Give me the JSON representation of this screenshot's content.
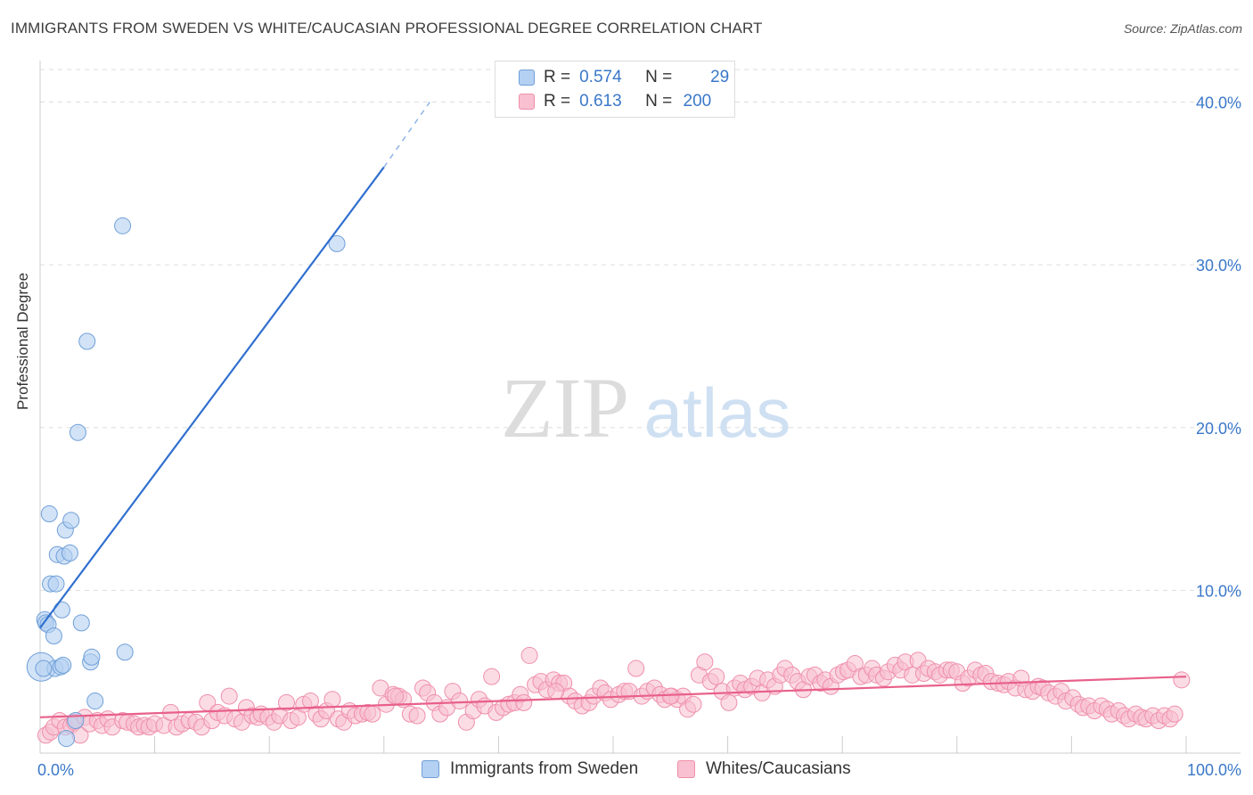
{
  "header": {
    "title": "IMMIGRANTS FROM SWEDEN VS WHITE/CAUCASIAN PROFESSIONAL DEGREE CORRELATION CHART",
    "source": "Source: ZipAtlas.com"
  },
  "watermark": {
    "zip": "ZIP",
    "atlas": "atlas"
  },
  "legend": {
    "series1": {
      "r_label": "R =",
      "r_value": "0.574",
      "n_label": "N =",
      "n_value": "29"
    },
    "series2": {
      "r_label": "R =",
      "r_value": "0.613",
      "n_label": "N =",
      "n_value": "200"
    }
  },
  "colors": {
    "blue_fill": "#b4d0f2",
    "blue_stroke": "#6f9fd8",
    "blue_line": "#2f6fcf",
    "pink_fill": "#f8c0d0",
    "pink_stroke": "#ef8fab",
    "pink_line": "#e8608a",
    "axis_text": "#3a78c9",
    "grid": "#dddddd"
  },
  "chart_data": {
    "type": "scatter",
    "title": "IMMIGRANTS FROM SWEDEN VS WHITE/CAUCASIAN PROFESSIONAL DEGREE CORRELATION CHART",
    "xlabel": "",
    "ylabel": "Professional Degree",
    "xlim": [
      0,
      100
    ],
    "ylim": [
      0,
      42
    ],
    "x_tick_labels": [
      "0.0%",
      "100.0%"
    ],
    "y_ticks": [
      10,
      20,
      30,
      40
    ],
    "y_tick_labels": [
      "10.0%",
      "20.0%",
      "30.0%",
      "40.0%"
    ],
    "grid": true,
    "series": [
      {
        "name": "Immigrants from Sweden",
        "color": "#6f9fd8",
        "r": 0.574,
        "n": 29,
        "trend": {
          "x0": 0,
          "y0": 7.7,
          "x1": 30,
          "y1": 36,
          "dash_to_x": 34,
          "dash_to_y": 40
        },
        "points": [
          [
            0.1,
            5.3,
            16
          ],
          [
            0.4,
            8.2,
            9
          ],
          [
            0.5,
            8.0,
            9
          ],
          [
            0.7,
            7.9,
            9
          ],
          [
            0.8,
            14.7,
            9
          ],
          [
            0.9,
            10.4,
            9
          ],
          [
            1.2,
            7.2,
            9
          ],
          [
            1.3,
            5.2,
            9
          ],
          [
            1.5,
            12.2,
            9
          ],
          [
            1.4,
            10.4,
            9
          ],
          [
            1.8,
            5.3,
            9
          ],
          [
            1.9,
            8.8,
            9
          ],
          [
            2.0,
            5.4,
            9
          ],
          [
            2.1,
            12.1,
            9
          ],
          [
            2.2,
            13.7,
            9
          ],
          [
            2.3,
            0.9,
            9
          ],
          [
            2.6,
            12.3,
            9
          ],
          [
            2.7,
            14.3,
            9
          ],
          [
            3.1,
            2.0,
            9
          ],
          [
            3.3,
            19.7,
            9
          ],
          [
            3.6,
            8.0,
            9
          ],
          [
            4.1,
            25.3,
            9
          ],
          [
            4.4,
            5.6,
            9
          ],
          [
            4.5,
            5.9,
            9
          ],
          [
            4.8,
            3.2,
            9
          ],
          [
            7.4,
            6.2,
            9
          ],
          [
            7.2,
            32.4,
            9
          ],
          [
            25.9,
            31.3,
            9
          ],
          [
            0.3,
            5.2,
            9
          ]
        ]
      },
      {
        "name": "Whites/Caucasians",
        "color": "#ef8fab",
        "r": 0.613,
        "n": 200,
        "trend": {
          "x0": 0,
          "y0": 2.2,
          "x1": 100,
          "y1": 4.7
        },
        "points": [
          [
            0.5,
            1.1
          ],
          [
            0.9,
            1.3
          ],
          [
            1.2,
            1.6
          ],
          [
            1.7,
            2.0
          ],
          [
            2.2,
            1.6
          ],
          [
            2.7,
            1.7
          ],
          [
            3.0,
            1.9
          ],
          [
            3.5,
            1.1
          ],
          [
            3.9,
            2.2
          ],
          [
            4.3,
            1.8
          ],
          [
            5.0,
            2.0
          ],
          [
            5.4,
            1.7
          ],
          [
            5.9,
            2.1
          ],
          [
            6.3,
            1.6
          ],
          [
            7.2,
            2.0
          ],
          [
            7.6,
            1.9
          ],
          [
            8.2,
            1.8
          ],
          [
            8.6,
            1.6
          ],
          [
            9.1,
            1.7
          ],
          [
            9.5,
            1.6
          ],
          [
            10.0,
            1.8
          ],
          [
            10.8,
            1.7
          ],
          [
            11.4,
            2.5
          ],
          [
            11.9,
            1.6
          ],
          [
            12.4,
            1.8
          ],
          [
            13.0,
            2.0
          ],
          [
            13.6,
            1.9
          ],
          [
            14.1,
            1.6
          ],
          [
            14.6,
            3.1
          ],
          [
            15.0,
            2.0
          ],
          [
            15.5,
            2.5
          ],
          [
            16.1,
            2.3
          ],
          [
            16.5,
            3.5
          ],
          [
            17.0,
            2.1
          ],
          [
            17.6,
            1.9
          ],
          [
            18.0,
            2.8
          ],
          [
            18.5,
            2.3
          ],
          [
            19.0,
            2.2
          ],
          [
            19.3,
            2.4
          ],
          [
            19.9,
            2.2
          ],
          [
            20.4,
            1.9
          ],
          [
            20.9,
            2.3
          ],
          [
            21.5,
            3.1
          ],
          [
            21.9,
            2.0
          ],
          [
            22.5,
            2.2
          ],
          [
            23.0,
            3.0
          ],
          [
            23.6,
            3.2
          ],
          [
            24.1,
            2.4
          ],
          [
            24.5,
            2.1
          ],
          [
            25.0,
            2.6
          ],
          [
            25.5,
            3.3
          ],
          [
            26.0,
            2.1
          ],
          [
            26.5,
            1.9
          ],
          [
            27.0,
            2.6
          ],
          [
            27.5,
            2.3
          ],
          [
            28.1,
            2.4
          ],
          [
            28.6,
            2.5
          ],
          [
            29.0,
            2.4
          ],
          [
            29.7,
            4.0
          ],
          [
            30.2,
            3.0
          ],
          [
            30.8,
            3.6
          ],
          [
            31.3,
            3.5
          ],
          [
            31.7,
            3.3
          ],
          [
            32.3,
            2.4
          ],
          [
            32.9,
            2.3
          ],
          [
            33.4,
            4.0
          ],
          [
            33.8,
            3.7
          ],
          [
            34.4,
            3.1
          ],
          [
            34.9,
            2.4
          ],
          [
            35.5,
            2.8
          ],
          [
            36.0,
            3.8
          ],
          [
            36.6,
            3.2
          ],
          [
            37.2,
            1.9
          ],
          [
            37.8,
            2.6
          ],
          [
            38.3,
            3.3
          ],
          [
            38.8,
            2.9
          ],
          [
            39.4,
            4.7
          ],
          [
            39.8,
            2.5
          ],
          [
            40.4,
            2.8
          ],
          [
            40.9,
            3.0
          ],
          [
            41.4,
            3.1
          ],
          [
            41.9,
            3.6
          ],
          [
            42.2,
            3.1
          ],
          [
            42.7,
            6.0
          ],
          [
            43.2,
            4.2
          ],
          [
            43.7,
            4.4
          ],
          [
            44.2,
            3.9
          ],
          [
            44.8,
            4.5
          ],
          [
            45.3,
            4.3
          ],
          [
            45.7,
            4.3
          ],
          [
            46.2,
            3.5
          ],
          [
            46.7,
            3.2
          ],
          [
            47.3,
            2.9
          ],
          [
            47.9,
            3.1
          ],
          [
            48.3,
            3.5
          ],
          [
            48.9,
            4.0
          ],
          [
            49.3,
            3.7
          ],
          [
            49.8,
            3.3
          ],
          [
            50.5,
            3.6
          ],
          [
            51.0,
            3.8
          ],
          [
            51.4,
            3.8
          ],
          [
            52.0,
            5.2
          ],
          [
            52.5,
            3.5
          ],
          [
            53.0,
            3.8
          ],
          [
            53.6,
            4.0
          ],
          [
            54.1,
            3.6
          ],
          [
            54.5,
            3.3
          ],
          [
            55.1,
            3.5
          ],
          [
            55.6,
            3.3
          ],
          [
            56.1,
            3.5
          ],
          [
            56.5,
            2.7
          ],
          [
            57.0,
            3.0
          ],
          [
            57.5,
            4.8
          ],
          [
            58.0,
            5.6
          ],
          [
            58.5,
            4.4
          ],
          [
            59.0,
            4.7
          ],
          [
            59.5,
            3.8
          ],
          [
            60.1,
            3.1
          ],
          [
            60.6,
            4.0
          ],
          [
            61.1,
            4.3
          ],
          [
            61.5,
            3.9
          ],
          [
            62.1,
            4.1
          ],
          [
            62.6,
            4.6
          ],
          [
            63.0,
            3.7
          ],
          [
            63.5,
            4.5
          ],
          [
            64.1,
            4.1
          ],
          [
            64.6,
            4.8
          ],
          [
            65.0,
            5.2
          ],
          [
            65.6,
            4.8
          ],
          [
            66.1,
            4.4
          ],
          [
            66.6,
            3.9
          ],
          [
            67.1,
            4.7
          ],
          [
            67.6,
            4.8
          ],
          [
            68.1,
            4.3
          ],
          [
            68.5,
            4.5
          ],
          [
            69.0,
            4.1
          ],
          [
            69.6,
            4.8
          ],
          [
            70.1,
            5.0
          ],
          [
            70.5,
            5.1
          ],
          [
            71.1,
            5.5
          ],
          [
            71.6,
            4.7
          ],
          [
            72.1,
            4.8
          ],
          [
            72.6,
            5.2
          ],
          [
            73.0,
            4.8
          ],
          [
            73.6,
            4.6
          ],
          [
            74.0,
            5.0
          ],
          [
            74.6,
            5.4
          ],
          [
            75.1,
            5.1
          ],
          [
            75.5,
            5.6
          ],
          [
            76.1,
            4.8
          ],
          [
            76.6,
            5.7
          ],
          [
            77.1,
            4.9
          ],
          [
            77.5,
            5.2
          ],
          [
            78.1,
            5.0
          ],
          [
            78.5,
            4.8
          ],
          [
            79.1,
            5.1
          ],
          [
            79.5,
            5.1
          ],
          [
            80.0,
            5.0
          ],
          [
            80.5,
            4.3
          ],
          [
            81.0,
            4.6
          ],
          [
            81.6,
            5.1
          ],
          [
            82.1,
            4.8
          ],
          [
            82.5,
            4.9
          ],
          [
            83.0,
            4.4
          ],
          [
            83.6,
            4.3
          ],
          [
            84.1,
            4.2
          ],
          [
            84.5,
            4.4
          ],
          [
            85.1,
            4.0
          ],
          [
            85.6,
            4.6
          ],
          [
            86.0,
            3.9
          ],
          [
            86.6,
            3.8
          ],
          [
            87.1,
            4.1
          ],
          [
            87.5,
            4.0
          ],
          [
            88.0,
            3.7
          ],
          [
            88.6,
            3.5
          ],
          [
            89.1,
            3.8
          ],
          [
            89.5,
            3.2
          ],
          [
            90.1,
            3.4
          ],
          [
            90.6,
            3.0
          ],
          [
            91.0,
            2.8
          ],
          [
            91.5,
            2.9
          ],
          [
            92.0,
            2.6
          ],
          [
            92.6,
            2.9
          ],
          [
            93.1,
            2.7
          ],
          [
            93.5,
            2.4
          ],
          [
            94.1,
            2.6
          ],
          [
            94.6,
            2.3
          ],
          [
            95.0,
            2.1
          ],
          [
            95.6,
            2.4
          ],
          [
            96.1,
            2.2
          ],
          [
            96.5,
            2.1
          ],
          [
            97.1,
            2.3
          ],
          [
            97.6,
            2.0
          ],
          [
            98.1,
            2.3
          ],
          [
            98.6,
            2.1
          ],
          [
            99.0,
            2.4
          ],
          [
            99.6,
            4.5
          ],
          [
            31.0,
            3.5
          ],
          [
            45.0,
            3.8
          ],
          [
            55.0,
            3.5
          ]
        ]
      }
    ]
  },
  "bottom_legend": {
    "series1_label": "Immigrants from Sweden",
    "series2_label": "Whites/Caucasians"
  }
}
